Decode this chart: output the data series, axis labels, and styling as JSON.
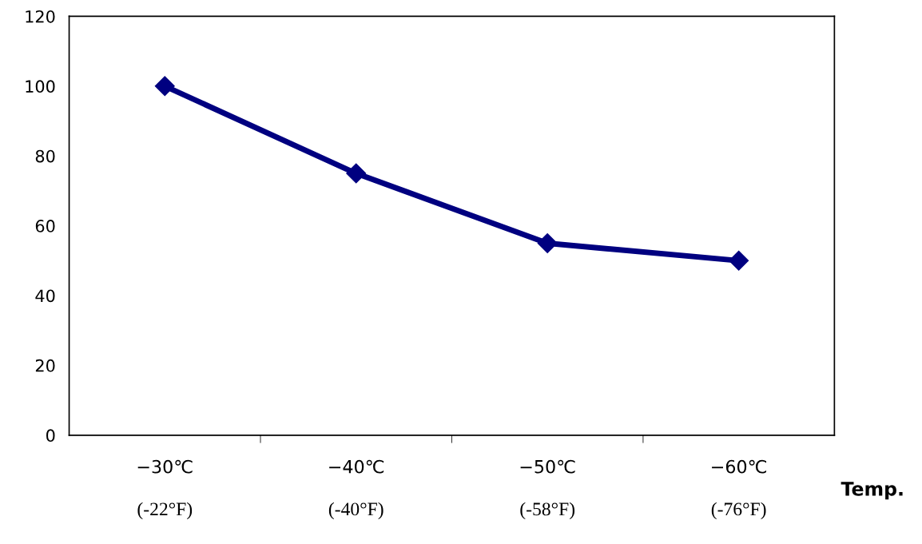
{
  "chart_data": {
    "type": "line",
    "xlabel": "Temp.",
    "categories": [
      "−30℃\n(-22°F)",
      "−40℃\n(-40°F)",
      "−50℃\n(-58°F)",
      "−60℃\n(-76°F)"
    ],
    "series": [
      {
        "color": "#000080",
        "values": [
          100,
          75,
          55,
          50
        ]
      }
    ],
    "ylim": [
      0,
      120
    ],
    "yticks": [
      0,
      20,
      40,
      60,
      80,
      100,
      120
    ],
    "marker": "diamond",
    "line_style": "solid",
    "grid": false
  }
}
